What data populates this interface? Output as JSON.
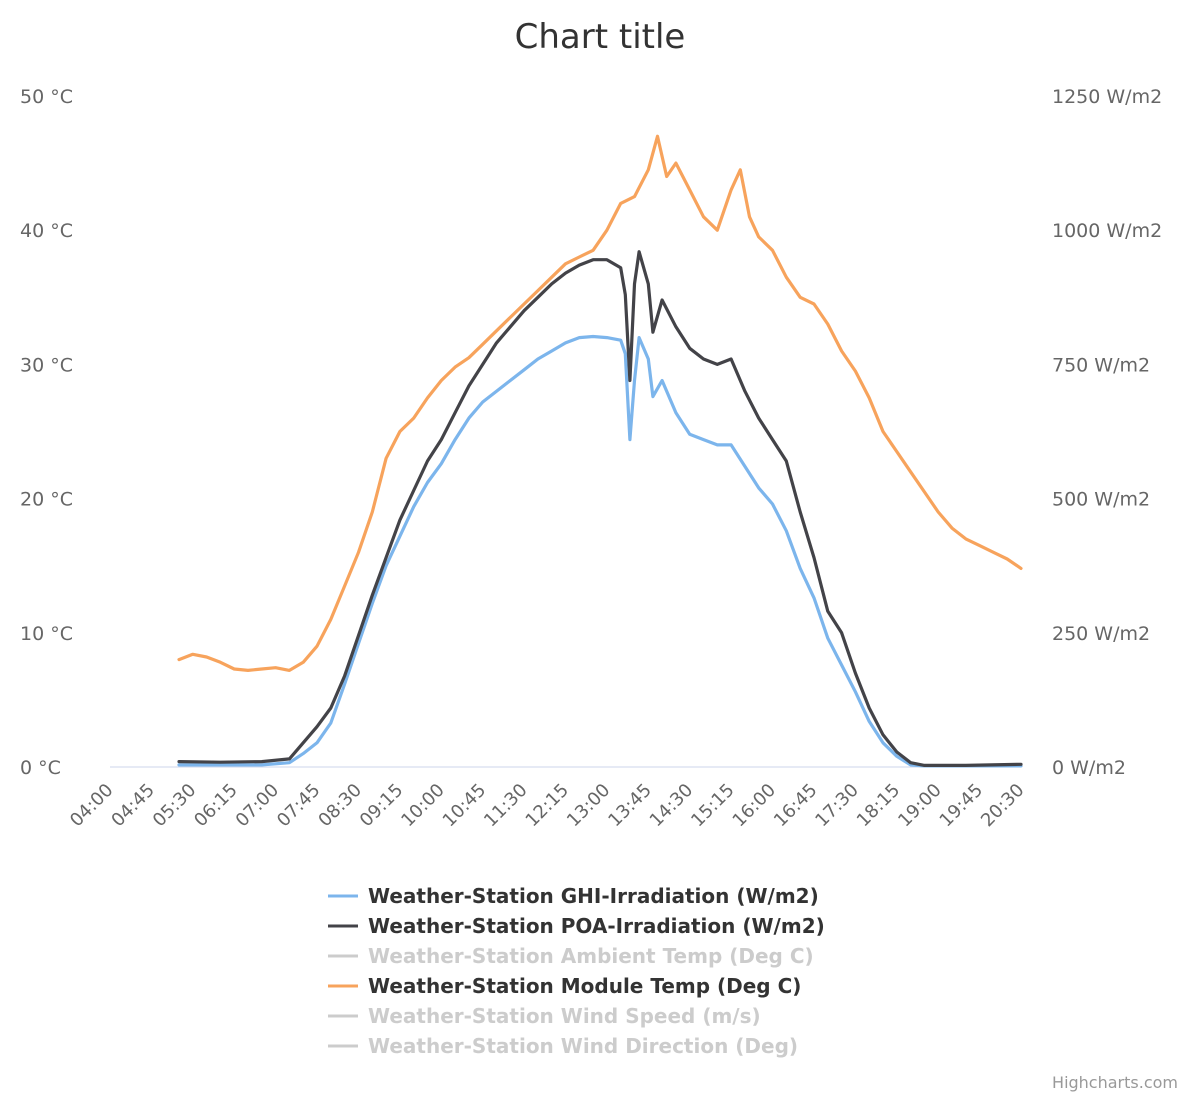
{
  "chart_data": {
    "type": "line",
    "title": "Chart title",
    "x_categories": [
      "04:00",
      "04:45",
      "05:30",
      "06:15",
      "07:00",
      "07:45",
      "08:30",
      "09:15",
      "10:00",
      "10:45",
      "11:30",
      "12:15",
      "13:00",
      "13:45",
      "14:30",
      "15:15",
      "16:00",
      "16:45",
      "17:30",
      "18:15",
      "19:00",
      "19:45",
      "20:30"
    ],
    "x_range": [
      "04:00",
      "20:30"
    ],
    "y_axis_left": {
      "ticks": [
        "0 °C",
        "10 °C",
        "20 °C",
        "30 °C",
        "40 °C",
        "50 °C"
      ],
      "range": [
        0,
        50
      ],
      "unit": "°C"
    },
    "y_axis_right": {
      "ticks": [
        "0 W/m2",
        "250 W/m2",
        "500 W/m2",
        "750 W/m2",
        "1000 W/m2",
        "1250 W/m2"
      ],
      "range": [
        0,
        1250
      ],
      "unit": "W/m2"
    },
    "grid": false,
    "legend_position": "bottom-center",
    "series": [
      {
        "name": "Weather-Station GHI-Irradiation (W/m2)",
        "axis": "right",
        "visible": true,
        "color": "#7cb5ec",
        "points": [
          [
            "05:15",
            4
          ],
          [
            "06:00",
            4
          ],
          [
            "06:45",
            4
          ],
          [
            "07:15",
            8
          ],
          [
            "07:30",
            25
          ],
          [
            "07:45",
            45
          ],
          [
            "08:00",
            82
          ],
          [
            "08:15",
            155
          ],
          [
            "08:30",
            230
          ],
          [
            "08:45",
            305
          ],
          [
            "09:00",
            375
          ],
          [
            "09:15",
            430
          ],
          [
            "09:30",
            485
          ],
          [
            "09:45",
            530
          ],
          [
            "10:00",
            565
          ],
          [
            "10:15",
            610
          ],
          [
            "10:30",
            650
          ],
          [
            "10:45",
            680
          ],
          [
            "11:00",
            700
          ],
          [
            "11:15",
            720
          ],
          [
            "11:30",
            740
          ],
          [
            "11:45",
            760
          ],
          [
            "12:00",
            775
          ],
          [
            "12:15",
            790
          ],
          [
            "12:30",
            800
          ],
          [
            "12:45",
            802
          ],
          [
            "13:00",
            800
          ],
          [
            "13:15",
            795
          ],
          [
            "13:20",
            770
          ],
          [
            "13:25",
            610
          ],
          [
            "13:30",
            720
          ],
          [
            "13:35",
            800
          ],
          [
            "13:45",
            760
          ],
          [
            "13:50",
            690
          ],
          [
            "14:00",
            720
          ],
          [
            "14:15",
            660
          ],
          [
            "14:30",
            620
          ],
          [
            "14:45",
            610
          ],
          [
            "15:00",
            600
          ],
          [
            "15:15",
            600
          ],
          [
            "15:30",
            560
          ],
          [
            "15:45",
            520
          ],
          [
            "16:00",
            490
          ],
          [
            "16:15",
            440
          ],
          [
            "16:30",
            370
          ],
          [
            "16:45",
            315
          ],
          [
            "17:00",
            240
          ],
          [
            "17:15",
            190
          ],
          [
            "17:30",
            140
          ],
          [
            "17:45",
            85
          ],
          [
            "18:00",
            45
          ],
          [
            "18:15",
            20
          ],
          [
            "18:30",
            4
          ],
          [
            "18:45",
            2
          ],
          [
            "19:30",
            2
          ],
          [
            "20:30",
            2
          ]
        ]
      },
      {
        "name": "Weather-Station POA-Irradiation (W/m2)",
        "axis": "right",
        "visible": true,
        "color": "#434348",
        "points": [
          [
            "05:15",
            10
          ],
          [
            "06:00",
            9
          ],
          [
            "06:45",
            10
          ],
          [
            "07:15",
            15
          ],
          [
            "07:30",
            45
          ],
          [
            "07:45",
            75
          ],
          [
            "08:00",
            110
          ],
          [
            "08:15",
            170
          ],
          [
            "08:30",
            245
          ],
          [
            "08:45",
            320
          ],
          [
            "09:00",
            390
          ],
          [
            "09:15",
            460
          ],
          [
            "09:30",
            515
          ],
          [
            "09:45",
            570
          ],
          [
            "10:00",
            610
          ],
          [
            "10:15",
            660
          ],
          [
            "10:30",
            710
          ],
          [
            "10:45",
            750
          ],
          [
            "11:00",
            790
          ],
          [
            "11:15",
            820
          ],
          [
            "11:30",
            850
          ],
          [
            "11:45",
            875
          ],
          [
            "12:00",
            900
          ],
          [
            "12:15",
            920
          ],
          [
            "12:30",
            935
          ],
          [
            "12:45",
            945
          ],
          [
            "13:00",
            945
          ],
          [
            "13:15",
            930
          ],
          [
            "13:20",
            880
          ],
          [
            "13:25",
            720
          ],
          [
            "13:30",
            900
          ],
          [
            "13:35",
            960
          ],
          [
            "13:45",
            900
          ],
          [
            "13:50",
            810
          ],
          [
            "14:00",
            870
          ],
          [
            "14:15",
            820
          ],
          [
            "14:30",
            780
          ],
          [
            "14:45",
            760
          ],
          [
            "15:00",
            750
          ],
          [
            "15:15",
            760
          ],
          [
            "15:30",
            700
          ],
          [
            "15:45",
            650
          ],
          [
            "16:00",
            610
          ],
          [
            "16:15",
            570
          ],
          [
            "16:30",
            475
          ],
          [
            "16:45",
            390
          ],
          [
            "17:00",
            290
          ],
          [
            "17:15",
            250
          ],
          [
            "17:30",
            175
          ],
          [
            "17:45",
            110
          ],
          [
            "18:00",
            60
          ],
          [
            "18:15",
            28
          ],
          [
            "18:30",
            8
          ],
          [
            "18:45",
            3
          ],
          [
            "19:30",
            3
          ],
          [
            "20:30",
            5
          ]
        ]
      },
      {
        "name": "Weather-Station Ambient Temp (Deg C)",
        "axis": "left",
        "visible": false,
        "color": "#cccccc",
        "points": []
      },
      {
        "name": "Weather-Station Module Temp (Deg C)",
        "axis": "left",
        "visible": true,
        "color": "#f7a35c",
        "points": [
          [
            "05:15",
            8
          ],
          [
            "05:30",
            8.4
          ],
          [
            "05:45",
            8.2
          ],
          [
            "06:00",
            7.8
          ],
          [
            "06:15",
            7.3
          ],
          [
            "06:30",
            7.2
          ],
          [
            "06:45",
            7.3
          ],
          [
            "07:00",
            7.4
          ],
          [
            "07:15",
            7.2
          ],
          [
            "07:30",
            7.8
          ],
          [
            "07:45",
            9
          ],
          [
            "08:00",
            11
          ],
          [
            "08:15",
            13.5
          ],
          [
            "08:30",
            16
          ],
          [
            "08:45",
            19
          ],
          [
            "09:00",
            23
          ],
          [
            "09:15",
            25
          ],
          [
            "09:30",
            26
          ],
          [
            "09:45",
            27.5
          ],
          [
            "10:00",
            28.8
          ],
          [
            "10:15",
            29.8
          ],
          [
            "10:30",
            30.5
          ],
          [
            "10:45",
            31.5
          ],
          [
            "11:00",
            32.5
          ],
          [
            "11:15",
            33.5
          ],
          [
            "11:30",
            34.5
          ],
          [
            "11:45",
            35.5
          ],
          [
            "12:00",
            36.5
          ],
          [
            "12:15",
            37.5
          ],
          [
            "12:30",
            38
          ],
          [
            "12:45",
            38.5
          ],
          [
            "13:00",
            40
          ],
          [
            "13:15",
            42
          ],
          [
            "13:30",
            42.5
          ],
          [
            "13:45",
            44.5
          ],
          [
            "13:55",
            47
          ],
          [
            "14:05",
            44
          ],
          [
            "14:15",
            45
          ],
          [
            "14:30",
            43
          ],
          [
            "14:45",
            41
          ],
          [
            "15:00",
            40
          ],
          [
            "15:15",
            43
          ],
          [
            "15:25",
            44.5
          ],
          [
            "15:35",
            41
          ],
          [
            "15:45",
            39.5
          ],
          [
            "16:00",
            38.5
          ],
          [
            "16:15",
            36.5
          ],
          [
            "16:30",
            35
          ],
          [
            "16:45",
            34.5
          ],
          [
            "17:00",
            33
          ],
          [
            "17:15",
            31
          ],
          [
            "17:30",
            29.5
          ],
          [
            "17:45",
            27.5
          ],
          [
            "18:00",
            25
          ],
          [
            "18:15",
            23.5
          ],
          [
            "18:30",
            22
          ],
          [
            "18:45",
            20.5
          ],
          [
            "19:00",
            19
          ],
          [
            "19:15",
            17.8
          ],
          [
            "19:30",
            17
          ],
          [
            "19:45",
            16.5
          ],
          [
            "20:00",
            16
          ],
          [
            "20:15",
            15.5
          ],
          [
            "20:30",
            14.8
          ]
        ]
      },
      {
        "name": "Weather-Station Wind Speed (m/s)",
        "axis": "left",
        "visible": false,
        "color": "#cccccc",
        "points": []
      },
      {
        "name": "Weather-Station Wind Direction (Deg)",
        "axis": "left",
        "visible": false,
        "color": "#cccccc",
        "points": []
      }
    ]
  },
  "credits": "Highcharts.com"
}
